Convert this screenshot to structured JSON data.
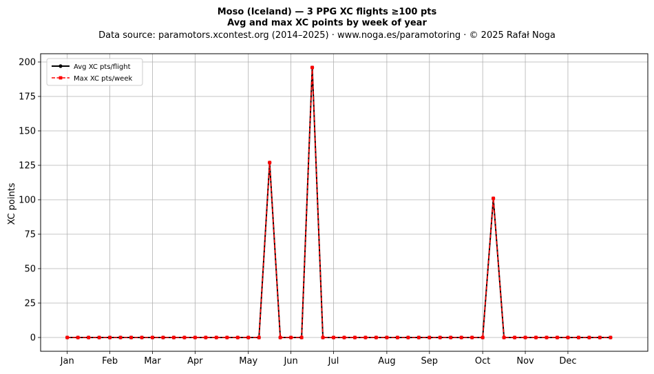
{
  "chart_data": {
    "type": "line",
    "title": "Moso (Iceland)  —  3 PPG XC flights ≥100 pts",
    "subtitle": "Avg and max XC points by week of year",
    "source": "Data source: paramotors.xcontest.org (2014–2025)  ·  www.noga.es/paramotoring  ·  © 2025 Rafał Noga",
    "xlabel": "",
    "ylabel": "XC points",
    "xlim": [
      -2.5,
      54.5
    ],
    "ylim": [
      -10,
      206
    ],
    "yticks": [
      0,
      25,
      50,
      75,
      100,
      125,
      150,
      175,
      200
    ],
    "xticks": [
      {
        "x": 0,
        "label": "Jan"
      },
      {
        "x": 4,
        "label": "Feb"
      },
      {
        "x": 8,
        "label": "Mar"
      },
      {
        "x": 12,
        "label": "Apr"
      },
      {
        "x": 17,
        "label": "May"
      },
      {
        "x": 21,
        "label": "Jun"
      },
      {
        "x": 25,
        "label": "Jul"
      },
      {
        "x": 30,
        "label": "Aug"
      },
      {
        "x": 34,
        "label": "Sep"
      },
      {
        "x": 39,
        "label": "Oct"
      },
      {
        "x": 43,
        "label": "Nov"
      },
      {
        "x": 47,
        "label": "Dec"
      }
    ],
    "grid": true,
    "legend_position": "top-left",
    "x": [
      0,
      1,
      2,
      3,
      4,
      5,
      6,
      7,
      8,
      9,
      10,
      11,
      12,
      13,
      14,
      15,
      16,
      17,
      18,
      19,
      20,
      21,
      22,
      23,
      24,
      25,
      26,
      27,
      28,
      29,
      30,
      31,
      32,
      33,
      34,
      35,
      36,
      37,
      38,
      39,
      40,
      41,
      42,
      43,
      44,
      45,
      46,
      47,
      48,
      49,
      50,
      51
    ],
    "series": [
      {
        "name": "Avg XC pts/flight",
        "color": "#000000",
        "style": "solid",
        "marker": "circle",
        "values": [
          0,
          0,
          0,
          0,
          0,
          0,
          0,
          0,
          0,
          0,
          0,
          0,
          0,
          0,
          0,
          0,
          0,
          0,
          0,
          127,
          0,
          0,
          0,
          196,
          0,
          0,
          0,
          0,
          0,
          0,
          0,
          0,
          0,
          0,
          0,
          0,
          0,
          0,
          0,
          0,
          101,
          0,
          0,
          0,
          0,
          0,
          0,
          0,
          0,
          0,
          0,
          0
        ]
      },
      {
        "name": "Max XC pts/week",
        "color": "#ff0000",
        "style": "dashed",
        "marker": "square",
        "values": [
          0,
          0,
          0,
          0,
          0,
          0,
          0,
          0,
          0,
          0,
          0,
          0,
          0,
          0,
          0,
          0,
          0,
          0,
          0,
          127,
          0,
          0,
          0,
          196,
          0,
          0,
          0,
          0,
          0,
          0,
          0,
          0,
          0,
          0,
          0,
          0,
          0,
          0,
          0,
          0,
          101,
          0,
          0,
          0,
          0,
          0,
          0,
          0,
          0,
          0,
          0,
          0
        ]
      }
    ]
  }
}
